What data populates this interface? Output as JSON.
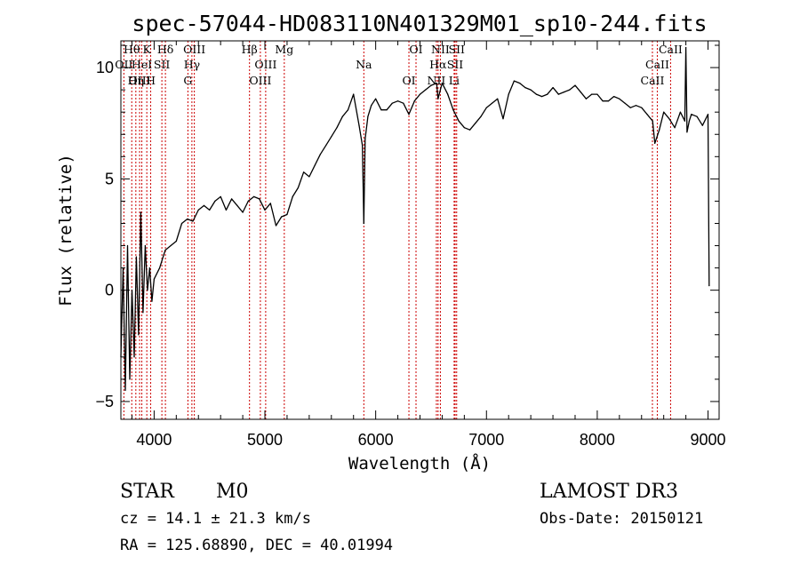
{
  "chart_data": {
    "type": "line",
    "title": "spec-57044-HD083110N401329M01_sp10-244.fits",
    "xlabel": "Wavelength (Å)",
    "ylabel": "Flux (relative)",
    "xlim": [
      3700,
      9100
    ],
    "ylim": [
      -5.8,
      11.2
    ],
    "xticks": [
      4000,
      5000,
      6000,
      7000,
      8000,
      9000
    ],
    "xtick_labels": [
      "4000",
      "5000",
      "6000",
      "7000",
      "8000",
      "9000"
    ],
    "yticks": [
      -5,
      0,
      5,
      10
    ],
    "ytick_labels": [
      "−5",
      "0",
      "5",
      "10"
    ],
    "series": [
      {
        "color": "#000000",
        "x": [
          3700,
          3720,
          3740,
          3760,
          3780,
          3800,
          3820,
          3840,
          3860,
          3880,
          3900,
          3920,
          3940,
          3960,
          3980,
          4000,
          4050,
          4100,
          4150,
          4200,
          4250,
          4300,
          4350,
          4400,
          4450,
          4500,
          4550,
          4600,
          4650,
          4700,
          4750,
          4800,
          4850,
          4900,
          4950,
          5000,
          5050,
          5100,
          5150,
          5200,
          5250,
          5300,
          5350,
          5400,
          5450,
          5500,
          5550,
          5600,
          5650,
          5700,
          5750,
          5800,
          5850,
          5880,
          5893,
          5905,
          5930,
          5960,
          6000,
          6050,
          6100,
          6150,
          6200,
          6250,
          6300,
          6350,
          6400,
          6450,
          6500,
          6550,
          6563,
          6600,
          6650,
          6700,
          6750,
          6800,
          6850,
          6900,
          6950,
          7000,
          7050,
          7100,
          7150,
          7200,
          7250,
          7300,
          7350,
          7400,
          7450,
          7500,
          7550,
          7600,
          7650,
          7700,
          7750,
          7800,
          7850,
          7900,
          7950,
          8000,
          8050,
          8100,
          8150,
          8200,
          8250,
          8300,
          8350,
          8400,
          8450,
          8500,
          8520,
          8560,
          8600,
          8650,
          8700,
          8750,
          8790,
          8800,
          8810,
          8830,
          8850,
          8900,
          8950,
          9000,
          9010
        ],
        "values": [
          -3,
          1,
          -4.5,
          2,
          -4,
          0,
          -3,
          1.5,
          -2,
          3.5,
          -1,
          2,
          0,
          1,
          -0.5,
          0.5,
          1,
          1.8,
          2,
          2.2,
          3,
          3.2,
          3.1,
          3.6,
          3.8,
          3.6,
          4,
          4.2,
          3.6,
          4.1,
          3.8,
          3.5,
          4,
          4.2,
          4.1,
          3.6,
          3.9,
          2.9,
          3.3,
          3.4,
          4.2,
          4.6,
          5.3,
          5.1,
          5.6,
          6.1,
          6.5,
          6.9,
          7.3,
          7.8,
          8.1,
          8.8,
          7.4,
          6.5,
          3,
          6.8,
          7.8,
          8.3,
          8.6,
          8.1,
          8.1,
          8.4,
          8.5,
          8.4,
          7.9,
          8.5,
          8.8,
          9.0,
          9.2,
          9.3,
          8.6,
          9.3,
          8.8,
          8.1,
          7.6,
          7.3,
          7.2,
          7.5,
          7.8,
          8.2,
          8.4,
          8.6,
          7.7,
          8.8,
          9.4,
          9.3,
          9.1,
          9.0,
          8.8,
          8.7,
          8.8,
          9.1,
          8.8,
          8.9,
          9.0,
          9.2,
          8.9,
          8.6,
          8.8,
          8.8,
          8.5,
          8.5,
          8.7,
          8.6,
          8.4,
          8.2,
          8.3,
          8.2,
          7.9,
          7.6,
          6.6,
          7.2,
          8.0,
          7.7,
          7.3,
          8.0,
          7.6,
          10.9,
          7.1,
          7.6,
          7.9,
          7.8,
          7.4,
          7.9,
          0.2
        ]
      }
    ],
    "emission_lines": [
      {
        "label": "Hθ",
        "wavelength": 3798
      },
      {
        "label": "OII",
        "wavelength": 3727
      },
      {
        "label": "OIII",
        "wavelength": 3869
      },
      {
        "label": "K",
        "wavelength": 3934
      },
      {
        "label": "HeI",
        "wavelength": 3889
      },
      {
        "label": "Hη",
        "wavelength": 3835
      },
      {
        "label": "Hδ",
        "wavelength": 4102
      },
      {
        "label": "SII",
        "wavelength": 4070
      },
      {
        "label": "H",
        "wavelength": 3969
      },
      {
        "label": "OIII",
        "wavelength": 4363
      },
      {
        "label": "Hγ",
        "wavelength": 4341
      },
      {
        "label": "G",
        "wavelength": 4305
      },
      {
        "label": "Hβ",
        "wavelength": 4861
      },
      {
        "label": "OIII",
        "wavelength": 5007
      },
      {
        "label": "OIII",
        "wavelength": 4959
      },
      {
        "label": "Mg",
        "wavelength": 5175
      },
      {
        "label": "Na",
        "wavelength": 5893
      },
      {
        "label": "OI",
        "wavelength": 6300
      },
      {
        "label": "OI",
        "wavelength": 6364
      },
      {
        "label": "Hα",
        "wavelength": 6563
      },
      {
        "label": "NII",
        "wavelength": 6548
      },
      {
        "label": "NII",
        "wavelength": 6584
      },
      {
        "label": "SII",
        "wavelength": 6717
      },
      {
        "label": "Li",
        "wavelength": 6708
      },
      {
        "label": "SII",
        "wavelength": 6731
      },
      {
        "label": "CaII",
        "wavelength": 8542
      },
      {
        "label": "CaII",
        "wavelength": 8498
      },
      {
        "label": "CaII",
        "wavelength": 8662
      }
    ]
  },
  "info": {
    "class": "STAR",
    "subclass": "M0",
    "survey": "LAMOST DR3",
    "cz": "cz = 14.1 ± 21.3 km/s",
    "obs_date": "Obs-Date: 20150121",
    "coords": "RA = 125.68890, DEC =  40.01994"
  },
  "colors": {
    "spectrum": "#000000",
    "emission_line": "#cc0000",
    "axes": "#000000",
    "background": "#ffffff"
  }
}
